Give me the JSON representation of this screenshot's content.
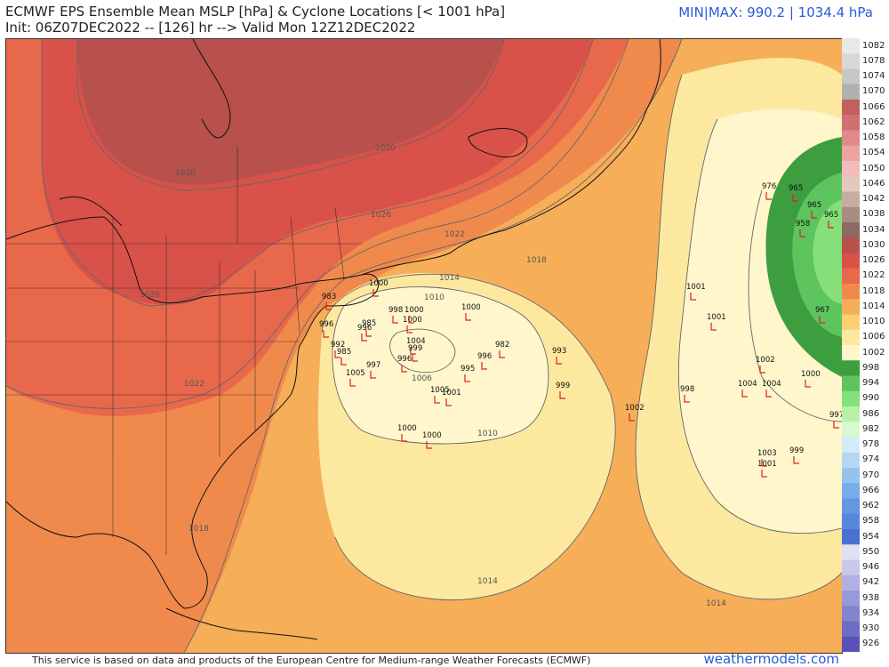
{
  "header": {
    "title": "ECMWF EPS Ensemble Mean MSLP [hPa] & Cyclone Locations [< 1001 hPa]",
    "init_line": "Init: 06Z07DEC2022 -- [126] hr --> Valid Mon 12Z12DEC2022",
    "minmax": "MIN|MAX: 990.2 | 1034.4 hPa"
  },
  "footer": {
    "disclaimer": "This service is based on data and products of the European Centre for Medium-range Weather Forecasts (ECMWF)",
    "credit": "weathermodels.com"
  },
  "colorbar": {
    "labels": [
      "1082",
      "1078",
      "1074",
      "1070",
      "1066",
      "1062",
      "1058",
      "1054",
      "1050",
      "1046",
      "1042",
      "1038",
      "1034",
      "1030",
      "1026",
      "1022",
      "1018",
      "1014",
      "1010",
      "1006",
      "1002",
      "998",
      "994",
      "990",
      "986",
      "982",
      "978",
      "974",
      "970",
      "966",
      "962",
      "958",
      "954",
      "950",
      "946",
      "942",
      "938",
      "934",
      "930",
      "926"
    ],
    "colors": [
      "#e8e8e8",
      "#d8d8d8",
      "#c6c6c6",
      "#b0b0b0",
      "#c06060",
      "#d07070",
      "#e08a8a",
      "#eba3a3",
      "#f2bcbc",
      "#e4c8c0",
      "#c8aca4",
      "#a88c84",
      "#8c6a62",
      "#b8504c",
      "#d8524a",
      "#e8684c",
      "#f08a4c",
      "#f6ae58",
      "#fbcf72",
      "#fde8a0",
      "#fff6cc",
      "#3d9e40",
      "#5ec45e",
      "#86e07a",
      "#b8f0a8",
      "#daf8d0",
      "#d4ecf8",
      "#b4d8f4",
      "#94c4ee",
      "#78acea",
      "#6496e2",
      "#5a86dc",
      "#4a70d4",
      "#e0e0f4",
      "#c8c8ec",
      "#b0b0e4",
      "#9898da",
      "#8484d0",
      "#6e6cc4",
      "#5a52b8"
    ]
  },
  "map": {
    "isobar_labels": [
      {
        "text": "1030",
        "id": "i1"
      },
      {
        "text": "1030",
        "id": "i2"
      },
      {
        "text": "1026",
        "id": "i3"
      },
      {
        "text": "1026",
        "id": "i4"
      },
      {
        "text": "1022",
        "id": "i5"
      },
      {
        "text": "1022",
        "id": "i6"
      },
      {
        "text": "1018",
        "id": "i7"
      },
      {
        "text": "1018",
        "id": "i8"
      },
      {
        "text": "1014",
        "id": "i9"
      },
      {
        "text": "1010",
        "id": "i10"
      },
      {
        "text": "1006",
        "id": "i11"
      },
      {
        "text": "1010",
        "id": "i12"
      },
      {
        "text": "1014",
        "id": "i13"
      },
      {
        "text": "1014",
        "id": "i14"
      }
    ],
    "cyclones": [
      "983",
      "1000",
      "996",
      "998",
      "1000",
      "1000",
      "985",
      "996",
      "992",
      "985",
      "1005",
      "997",
      "996",
      "1004",
      "999",
      "1000",
      "982",
      "996",
      "995",
      "993",
      "999",
      "1005",
      "1001",
      "1000",
      "1000",
      "1002",
      "998",
      "1001",
      "1001",
      "976",
      "965",
      "958",
      "965",
      "965",
      "967",
      "1002",
      "1004",
      "1004",
      "1000",
      "997",
      "1003",
      "1001",
      "999"
    ]
  }
}
